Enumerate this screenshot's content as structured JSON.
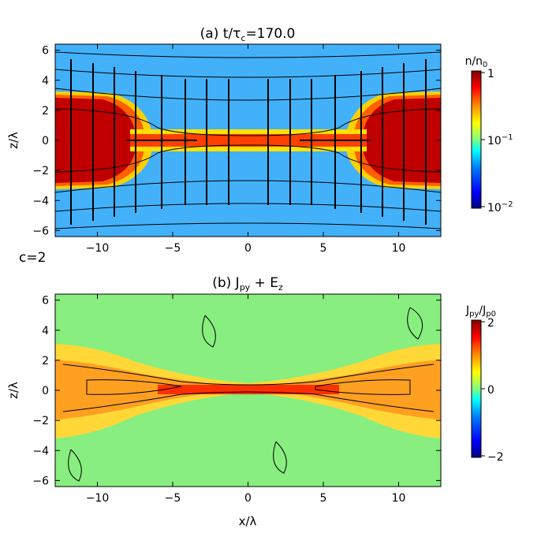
{
  "chart_data": [
    {
      "type": "heatmap",
      "panel_label": "(a)",
      "title": "(a) t/τc=170.0",
      "title_parts": [
        "(a) t/",
        "τ",
        "c",
        "=170.0"
      ],
      "xlabel": "",
      "ylabel": "z/λ",
      "xlim": [
        -12.8,
        12.8
      ],
      "ylim": [
        -6.4,
        6.4
      ],
      "xticks": [
        -10,
        -5,
        0,
        5,
        10
      ],
      "xtick_labels": [
        "−10",
        "−5",
        "0",
        "5",
        "10"
      ],
      "yticks": [
        -6,
        -4,
        -2,
        0,
        2,
        4,
        6
      ],
      "ytick_labels": [
        "−6",
        "−4",
        "−2",
        "0",
        "2",
        "4",
        "6"
      ],
      "annotation": "c=2",
      "colorbar": {
        "label": "n/n0",
        "label_parts": [
          "n/n",
          "0"
        ],
        "scale": "log",
        "range": [
          0.01,
          1
        ],
        "tick_labels": [
          {
            "value": 1,
            "base": "1",
            "exp": ""
          },
          {
            "value": 0.1,
            "base": "10",
            "exp": "−1"
          },
          {
            "value": 0.01,
            "base": "10",
            "exp": "−2"
          }
        ]
      },
      "overlays": [
        "magnetic field lines",
        "flow velocity arrows"
      ],
      "description": "Dense plasma (n/n0 ≈ 1) concentrated at |x| > 9 across |z| < 3, connected by a thin current sheet at z ≈ 0; background density ≈ 0.05–0.1."
    },
    {
      "type": "heatmap",
      "panel_label": "(b)",
      "title": "(b) Jpy + Ez",
      "title_parts": [
        "(b) J",
        "py",
        " + E",
        "z"
      ],
      "xlabel": "x/λ",
      "ylabel": "z/λ",
      "xlim": [
        -12.8,
        12.8
      ],
      "ylim": [
        -6.4,
        6.4
      ],
      "xticks": [
        -10,
        -5,
        0,
        5,
        10
      ],
      "xtick_labels": [
        "−10",
        "−5",
        "0",
        "5",
        "10"
      ],
      "yticks": [
        -6,
        -4,
        -2,
        0,
        2,
        4,
        6
      ],
      "ytick_labels": [
        "−6",
        "−4",
        "−2",
        "0",
        "2",
        "4",
        "6"
      ],
      "colorbar": {
        "label": "Jpy/Jp0",
        "label_parts": [
          "J",
          "py",
          "/J",
          "p0"
        ],
        "scale": "linear",
        "range": [
          -2,
          2
        ],
        "tick_labels": [
          {
            "value": 2,
            "base": "2",
            "exp": ""
          },
          {
            "value": 0,
            "base": "0",
            "exp": ""
          },
          {
            "value": -2,
            "base": "−2",
            "exp": ""
          }
        ]
      },
      "overlays": [
        "Ez contours"
      ],
      "description": "Positive current Jpy ≈ 1–1.5 along an X-shaped band: thin sheet at z ≈ 0 widening to |z| ≈ 3 near |x| ≈ 12; background ≈ 0."
    }
  ],
  "colors": {
    "colormap": [
      "#000080",
      "#0000ff",
      "#0080ff",
      "#00ffff",
      "#80ff80",
      "#ffff00",
      "#ff8000",
      "#ff0000",
      "#800000"
    ]
  }
}
